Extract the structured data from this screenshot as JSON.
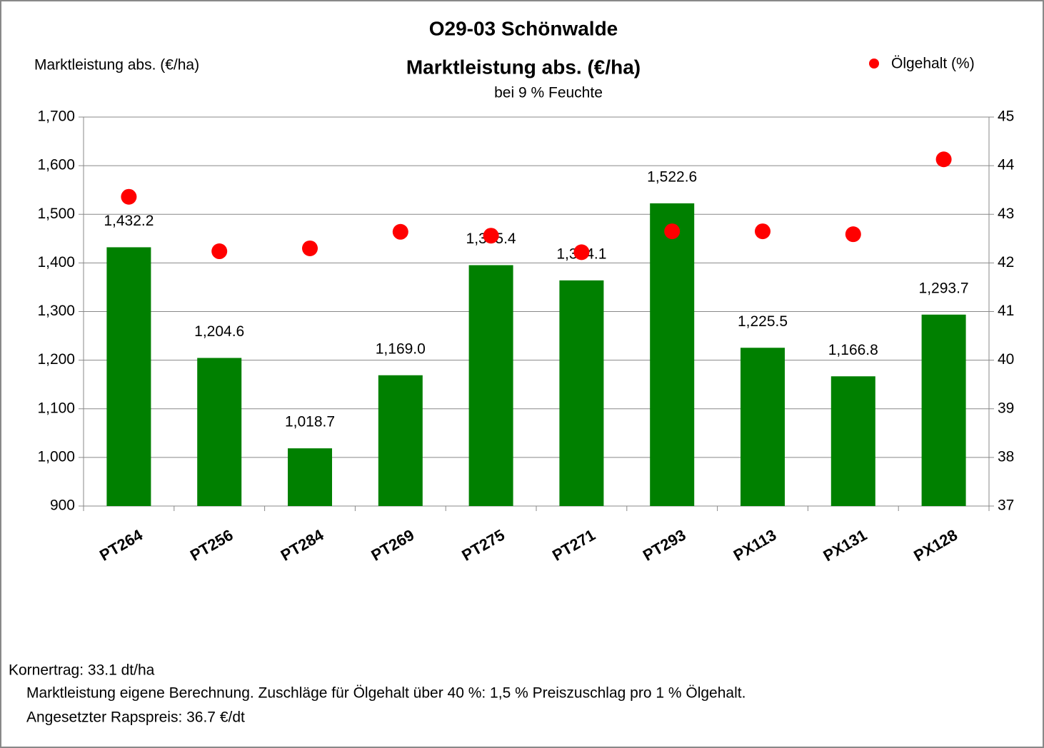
{
  "chart_data": {
    "type": "bar",
    "title": "O29-03 Schönwalde",
    "subtitle": "Marktleistung abs. (€/ha)",
    "subtitle2": "bei 9 % Feuchte",
    "y_label": "Marktleistung abs. (€/ha)",
    "categories": [
      "PT264",
      "PT256",
      "PT284",
      "PT269",
      "PT275",
      "PT271",
      "PT293",
      "PX113",
      "PX131",
      "PX128"
    ],
    "series": [
      {
        "type": "bar",
        "color": "#008000",
        "values": [
          1432.2,
          1204.6,
          1018.7,
          1169.0,
          1395.4,
          1364.1,
          1522.6,
          1225.5,
          1166.8,
          1293.7
        ],
        "value_labels": [
          "1,432.2",
          "1,204.6",
          "1,018.7",
          "1,169.0",
          "1,395.4",
          "1,364.1",
          "1,522.6",
          "1,225.5",
          "1,166.8",
          "1,293.7"
        ]
      },
      {
        "type": "scatter",
        "name": "Ölgehalt (%)",
        "color": "#ff0000",
        "axis": "y2",
        "values": [
          43.36,
          42.24,
          42.3,
          42.64,
          42.56,
          42.22,
          42.65,
          42.65,
          42.59,
          44.13
        ]
      }
    ],
    "ylim": [
      900,
      1700
    ],
    "yticks": [
      {
        "value": 900,
        "label": "900"
      },
      {
        "value": 1000,
        "label": "1,000"
      },
      {
        "value": 1100,
        "label": "1,100"
      },
      {
        "value": 1200,
        "label": "1,200"
      },
      {
        "value": 1300,
        "label": "1,300"
      },
      {
        "value": 1400,
        "label": "1,400"
      },
      {
        "value": 1500,
        "label": "1,500"
      },
      {
        "value": 1600,
        "label": "1,600"
      },
      {
        "value": 1700,
        "label": "1,700"
      }
    ],
    "y2lim": [
      37,
      45
    ],
    "y2ticks": [
      37,
      38,
      39,
      40,
      41,
      42,
      43,
      44,
      45
    ],
    "grid": true,
    "legend": "top-right",
    "notes": [
      "Kornertrag: 33.1 dt/ha",
      "Marktleistung eigene Berechnung. Zuschläge für Ölgehalt über 40 %: 1,5 % Preiszuschlag pro 1 % Ölgehalt.",
      "Angesetzter Rapspreis: 36.7 €/dt"
    ]
  }
}
